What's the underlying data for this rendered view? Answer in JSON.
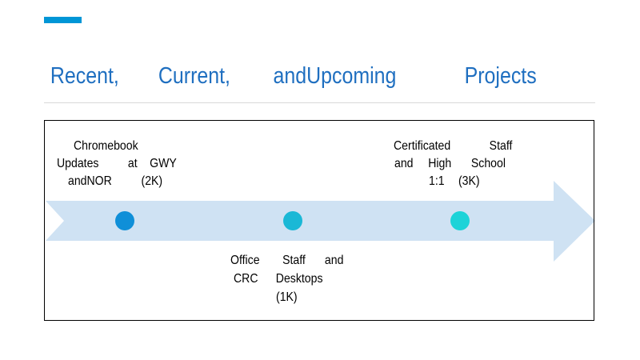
{
  "slide": {
    "title_words": [
      "Recent,",
      "Current,",
      "andUpcoming",
      "Projects"
    ],
    "accent_color": "#0096d6",
    "title_color": "#1f6fc0",
    "arrow_color": "#cfe2f3"
  },
  "milestones": [
    {
      "name": "chromebook-updates",
      "dot_color": "#0f8fd8",
      "lines": [
        [
          "Chromebook"
        ],
        [
          "Updates",
          "at",
          "GWY"
        ],
        [
          "andNOR",
          "(2K)"
        ]
      ]
    },
    {
      "name": "office-staff-desktops",
      "dot_color": "#1ab8d6",
      "lines": [
        [
          "Office",
          "Staff",
          "and"
        ],
        [
          "CRC",
          "Desktops"
        ],
        [
          "(1K)"
        ]
      ]
    },
    {
      "name": "certificated-staff-high-school",
      "dot_color": "#1cd3d8",
      "lines": [
        [
          "Certificated",
          "Staff"
        ],
        [
          "and",
          "High",
          "School"
        ],
        [
          "1:1",
          "(3K)"
        ]
      ]
    }
  ]
}
